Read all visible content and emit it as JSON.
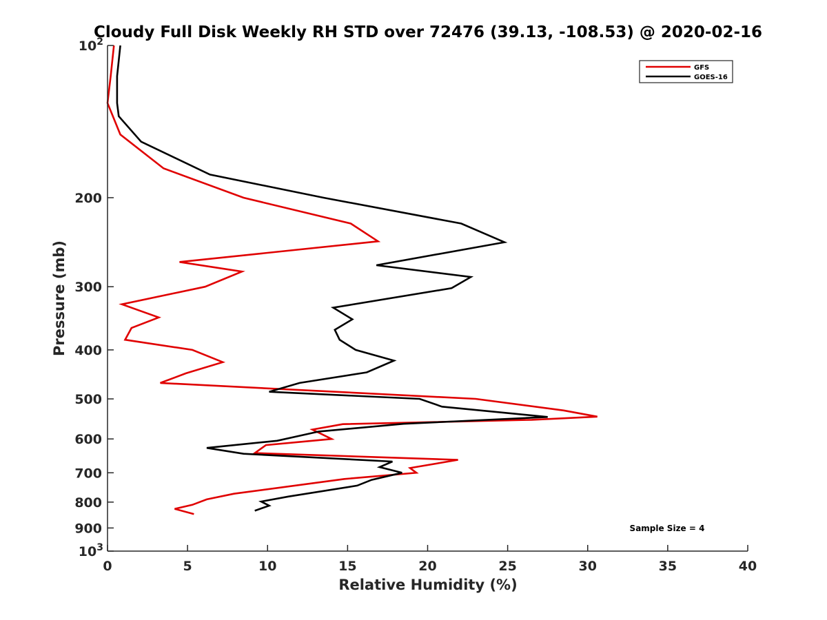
{
  "chart_data": {
    "type": "line",
    "title": "Cloudy Full Disk Weekly RH STD over 72476 (39.13, -108.53) @ 2020-02-16",
    "xlabel": "Relative Humidity (%)",
    "ylabel": "Pressure (mb)",
    "xlim": [
      0,
      40
    ],
    "ylim": [
      100,
      1000
    ],
    "yscale": "log",
    "y_reversed": true,
    "x_ticks": [
      0,
      5,
      10,
      15,
      20,
      25,
      30,
      35,
      40
    ],
    "y_ticks": [
      {
        "value": 100,
        "label": "10",
        "sup": "2"
      },
      {
        "value": 200,
        "label": "200"
      },
      {
        "value": 300,
        "label": "300"
      },
      {
        "value": 400,
        "label": "400"
      },
      {
        "value": 500,
        "label": "500"
      },
      {
        "value": 600,
        "label": "600"
      },
      {
        "value": 700,
        "label": "700"
      },
      {
        "value": 800,
        "label": "800"
      },
      {
        "value": 900,
        "label": "900"
      },
      {
        "value": 1000,
        "label": "10",
        "sup": "3"
      }
    ],
    "grid": false,
    "legend_position": "top-right",
    "annotation": "Sample Size = 4",
    "series": [
      {
        "name": "GFS",
        "color": "#e00000",
        "points": [
          [
            0.4,
            100
          ],
          [
            0.2,
            115
          ],
          [
            0.0,
            130
          ],
          [
            0.8,
            150
          ],
          [
            3.5,
            175
          ],
          [
            8.5,
            200
          ],
          [
            15.2,
            225
          ],
          [
            16.9,
            244
          ],
          [
            4.5,
            268
          ],
          [
            8.4,
            280
          ],
          [
            6.1,
            300
          ],
          [
            0.9,
            325
          ],
          [
            3.2,
            345
          ],
          [
            1.5,
            362
          ],
          [
            1.1,
            382
          ],
          [
            5.3,
            400
          ],
          [
            7.2,
            423
          ],
          [
            4.9,
            445
          ],
          [
            3.3,
            465
          ],
          [
            23.0,
            500
          ],
          [
            28.5,
            527
          ],
          [
            30.6,
            542
          ],
          [
            26.5,
            550
          ],
          [
            14.7,
            561
          ],
          [
            12.8,
            575
          ],
          [
            14.0,
            600
          ],
          [
            9.9,
            617
          ],
          [
            9.2,
            640
          ],
          [
            21.9,
            660
          ],
          [
            18.9,
            685
          ],
          [
            19.3,
            700
          ],
          [
            14.8,
            720
          ],
          [
            7.9,
            770
          ],
          [
            6.2,
            790
          ],
          [
            5.3,
            810
          ],
          [
            4.2,
            825
          ],
          [
            5.4,
            845
          ]
        ]
      },
      {
        "name": "GOES-16",
        "color": "#000000",
        "points": [
          [
            0.8,
            100
          ],
          [
            0.6,
            115
          ],
          [
            0.6,
            130
          ],
          [
            0.7,
            138
          ],
          [
            2.1,
            155
          ],
          [
            6.4,
            180
          ],
          [
            13.5,
            200
          ],
          [
            22.1,
            225
          ],
          [
            24.8,
            245
          ],
          [
            16.8,
            272
          ],
          [
            22.7,
            287
          ],
          [
            21.5,
            302
          ],
          [
            14.1,
            330
          ],
          [
            15.3,
            348
          ],
          [
            14.2,
            365
          ],
          [
            14.5,
            382
          ],
          [
            15.5,
            400
          ],
          [
            17.9,
            420
          ],
          [
            16.2,
            443
          ],
          [
            12.0,
            465
          ],
          [
            10.1,
            484
          ],
          [
            19.5,
            500
          ],
          [
            20.9,
            518
          ],
          [
            27.5,
            543
          ],
          [
            18.5,
            560
          ],
          [
            13.2,
            580
          ],
          [
            10.6,
            605
          ],
          [
            6.2,
            625
          ],
          [
            8.5,
            642
          ],
          [
            17.8,
            665
          ],
          [
            17.0,
            682
          ],
          [
            18.4,
            700
          ],
          [
            16.5,
            723
          ],
          [
            15.6,
            742
          ],
          [
            11.3,
            780
          ],
          [
            9.6,
            798
          ],
          [
            10.1,
            813
          ],
          [
            9.2,
            832
          ]
        ]
      }
    ]
  }
}
